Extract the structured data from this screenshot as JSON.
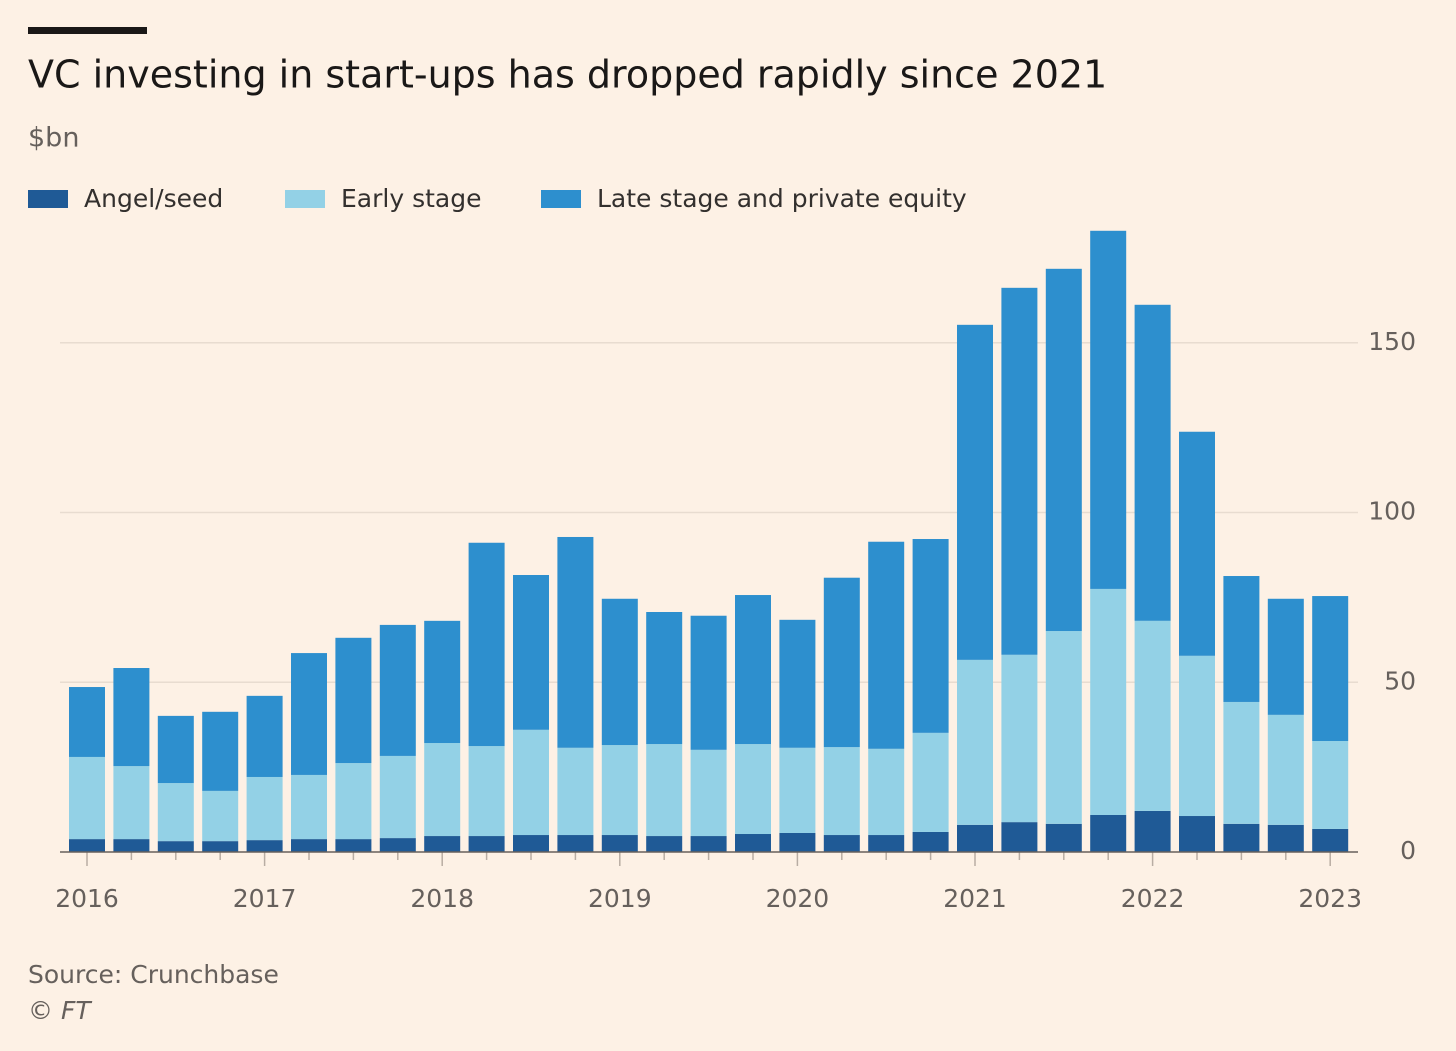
{
  "chart_data": {
    "type": "stacked_bar",
    "title": "VC investing in start-ups has dropped rapidly since 2021",
    "subtitle": "$bn",
    "source": "Source: Crunchbase",
    "credit": "© FT",
    "categories": [
      "2016",
      null,
      null,
      null,
      "2017",
      null,
      null,
      null,
      "2018",
      null,
      null,
      null,
      "2019",
      null,
      null,
      null,
      "2020",
      null,
      null,
      null,
      "2021",
      null,
      null,
      null,
      "2022",
      null,
      null,
      null,
      "2023"
    ],
    "series": [
      {
        "name": "Angel/seed",
        "color": "#1f5a96",
        "values": [
          3.8,
          3.8,
          3.2,
          3.2,
          3.5,
          3.8,
          3.8,
          4.1,
          4.7,
          4.7,
          5.0,
          5.0,
          5.0,
          4.7,
          4.7,
          5.3,
          5.6,
          5.0,
          5.0,
          5.9,
          8.0,
          8.8,
          8.3,
          10.9,
          12.1,
          10.6,
          8.3,
          8.0,
          6.8
        ]
      },
      {
        "name": "Early stage",
        "color": "#93d1e6",
        "values": [
          24.2,
          21.5,
          17.1,
          14.8,
          18.6,
          18.9,
          22.4,
          24.2,
          27.4,
          26.5,
          31.0,
          25.7,
          26.5,
          27.1,
          25.4,
          26.5,
          25.1,
          25.9,
          25.4,
          29.2,
          48.6,
          49.3,
          56.8,
          66.6,
          56.0,
          47.2,
          35.9,
          32.4,
          25.9
        ]
      },
      {
        "name": "Late stage and private equity",
        "color": "#2d8fce",
        "values": [
          20.6,
          28.9,
          19.8,
          23.3,
          23.9,
          35.9,
          36.9,
          38.6,
          36.0,
          59.9,
          45.6,
          62.1,
          43.1,
          38.9,
          39.5,
          43.9,
          37.7,
          49.9,
          61.0,
          57.1,
          98.7,
          108.1,
          106.7,
          105.5,
          93.1,
          66.0,
          37.1,
          34.2,
          42.7
        ]
      }
    ],
    "ylim": [
      0,
      185
    ],
    "yticks": [
      0,
      50,
      100,
      150
    ],
    "grid": true
  }
}
